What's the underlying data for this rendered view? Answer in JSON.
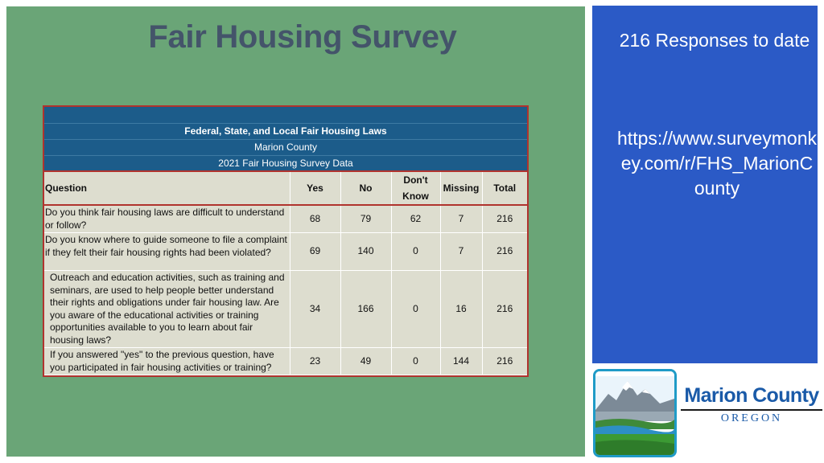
{
  "slide": {
    "title": "Fair Housing Survey"
  },
  "table": {
    "header_lines": [
      "Federal, State, and Local Fair Housing Laws",
      "Marion County",
      "2021 Fair Housing Survey Data"
    ],
    "columns": {
      "question": "Question",
      "yes": "Yes",
      "no": "No",
      "dont_know_1": "Don't",
      "dont_know_2": "Know",
      "missing": "Missing",
      "total": "Total"
    },
    "rows": [
      {
        "question": "Do you think fair housing laws are difficult to understand or follow?",
        "yes": "68",
        "no": "79",
        "dont_know": "62",
        "missing": "7",
        "total": "216"
      },
      {
        "question": "Do you know where to guide someone to file a complaint if they felt their fair housing rights had been violated?",
        "yes": "69",
        "no": "140",
        "dont_know": "0",
        "missing": "7",
        "total": "216"
      },
      {
        "question": "Outreach and education activities, such as training and seminars, are used to help people better understand their rights and obligations under fair housing law. Are you aware of the educational activities or training opportunities available to you to learn about fair housing laws?",
        "yes": "34",
        "no": "166",
        "dont_know": "0",
        "missing": "16",
        "total": "216"
      },
      {
        "question": "If you answered \"yes\" to the previous question, have you participated in fair housing activities or training?",
        "yes": "23",
        "no": "49",
        "dont_know": "0",
        "missing": "144",
        "total": "216"
      }
    ]
  },
  "side_panel": {
    "responses_text": "216 Responses to date",
    "url": "https://www.surveymonkey.com/r/FHS_MarionCounty"
  },
  "logo": {
    "name": "Marion County",
    "state": "OREGON"
  },
  "colors": {
    "main_panel": "#6aa577",
    "side_panel": "#2b5ac6",
    "table_header": "#1c5c8a",
    "table_border": "#b0332e",
    "title": "#44546a"
  }
}
